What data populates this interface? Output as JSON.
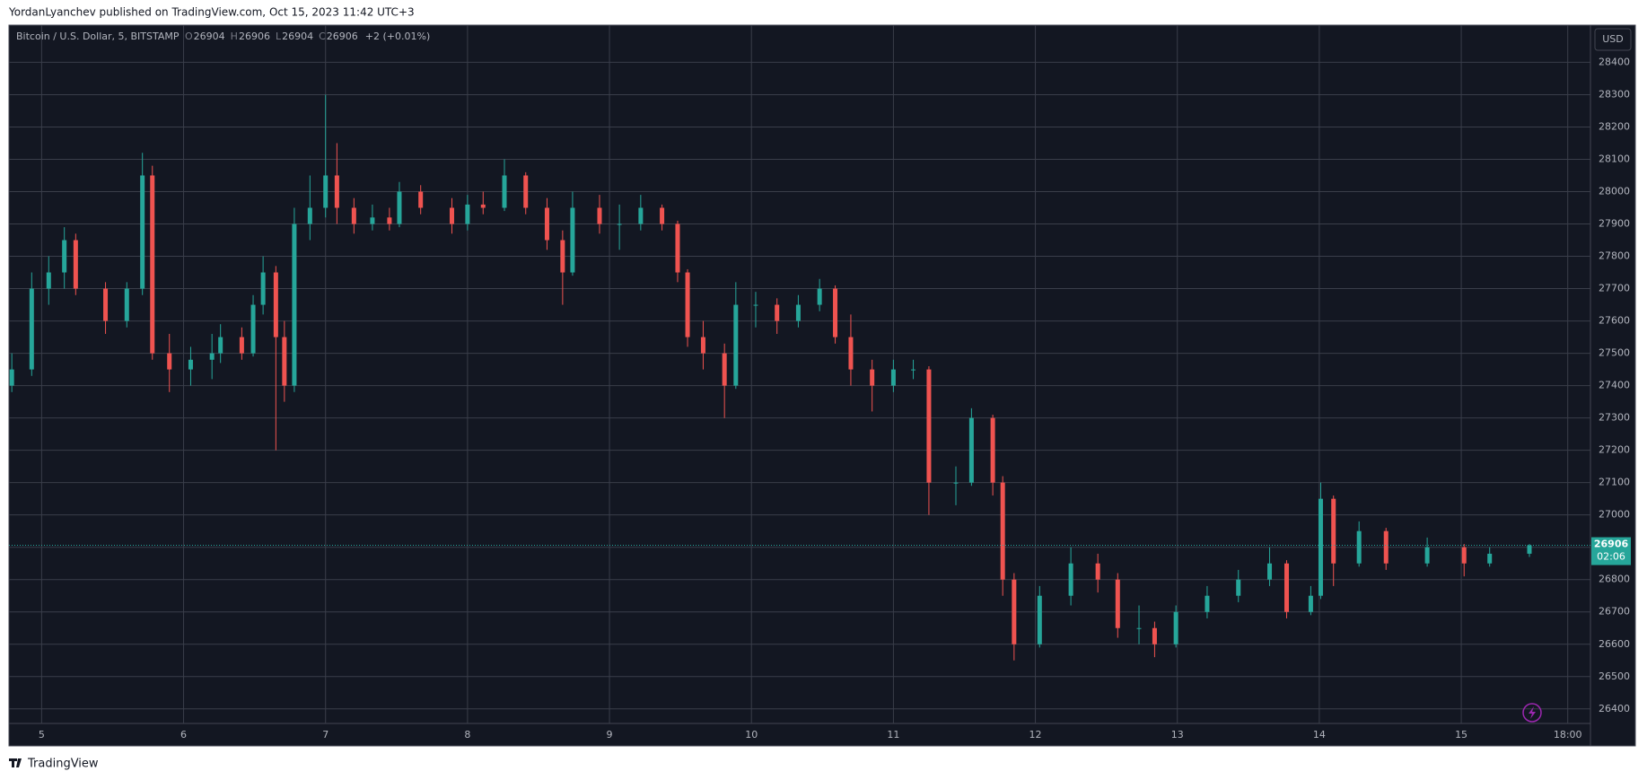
{
  "header": {
    "byline": "YordanLyanchev published on TradingView.com, Oct 15, 2023 11:42 UTC+3"
  },
  "footer": {
    "brand": "TradingView"
  },
  "chart_data": {
    "type": "candlestick",
    "symbol": "Bitcoin / U.S. Dollar, 5, BITSTAMP",
    "ohlc_legend": {
      "labels": [
        "O",
        "H",
        "L",
        "C"
      ],
      "values": [
        26904,
        26906,
        26904,
        26906
      ],
      "change": "+2 (+0.01%)"
    },
    "currency": "USD",
    "last_price": 26906,
    "countdown": "02:06",
    "up_color": "#26a69a",
    "down_color": "#ef5350",
    "grid": true,
    "xlim": [
      4.77,
      15.91
    ],
    "xticks": [
      5,
      6,
      7,
      8,
      9,
      10,
      11,
      12,
      13,
      14,
      15,
      {
        "value": 15.75,
        "label": "18:00"
      }
    ],
    "ylim": [
      26355,
      28515
    ],
    "yticks": [
      26400,
      26500,
      26600,
      26700,
      26800,
      26900,
      27000,
      27100,
      27200,
      27300,
      27400,
      27500,
      27600,
      27700,
      27800,
      27900,
      28000,
      28100,
      28200,
      28300,
      28400
    ],
    "x": [
      4.79,
      4.93,
      5.05,
      5.16,
      5.24,
      5.45,
      5.6,
      5.71,
      5.78,
      5.9,
      6.05,
      6.2,
      6.26,
      6.41,
      6.49,
      6.56,
      6.65,
      6.71,
      6.78,
      6.89,
      7.0,
      7.08,
      7.2,
      7.33,
      7.45,
      7.52,
      7.67,
      7.89,
      8.0,
      8.11,
      8.26,
      8.41,
      8.56,
      8.67,
      8.74,
      8.93,
      9.07,
      9.22,
      9.37,
      9.48,
      9.55,
      9.66,
      9.81,
      9.89,
      10.03,
      10.18,
      10.33,
      10.48,
      10.59,
      10.7,
      10.85,
      11.0,
      11.14,
      11.25,
      11.44,
      11.55,
      11.7,
      11.77,
      11.85,
      12.03,
      12.25,
      12.44,
      12.58,
      12.73,
      12.84,
      12.99,
      13.21,
      13.43,
      13.65,
      13.77,
      13.94,
      14.01,
      14.1,
      14.28,
      14.47,
      14.76,
      15.02,
      15.2,
      15.48
    ],
    "open": [
      27400,
      27450,
      27700,
      27750,
      27850,
      27700,
      27600,
      27700,
      28050,
      27500,
      27450,
      27480,
      27500,
      27550,
      27500,
      27650,
      27750,
      27550,
      27400,
      27900,
      27950,
      28050,
      27950,
      27900,
      27920,
      27900,
      28000,
      27950,
      27900,
      27960,
      27950,
      28050,
      27950,
      27850,
      27750,
      27950,
      27900,
      27900,
      27950,
      27900,
      27750,
      27550,
      27500,
      27400,
      27650,
      27650,
      27600,
      27650,
      27700,
      27550,
      27450,
      27400,
      27450,
      27450,
      27100,
      27100,
      27300,
      27100,
      26800,
      26600,
      26750,
      26850,
      26800,
      26650,
      26650,
      26600,
      26700,
      26750,
      26800,
      26850,
      26700,
      26750,
      27050,
      26850,
      26950,
      26850,
      26900,
      26850,
      26880
    ],
    "high": [
      27500,
      27750,
      27800,
      27890,
      27870,
      27720,
      27720,
      28120,
      28080,
      27560,
      27520,
      27560,
      27590,
      27580,
      27680,
      27800,
      27770,
      27600,
      27950,
      28050,
      28300,
      28150,
      27980,
      27960,
      27950,
      28030,
      28020,
      27980,
      27990,
      28000,
      28100,
      28060,
      27980,
      27880,
      28000,
      27990,
      27960,
      27990,
      27960,
      27910,
      27760,
      27600,
      27530,
      27720,
      27690,
      27670,
      27680,
      27730,
      27710,
      27620,
      27480,
      27480,
      27480,
      27460,
      27150,
      27330,
      27310,
      27120,
      26820,
      26780,
      26900,
      26880,
      26820,
      26720,
      26670,
      26720,
      26780,
      26830,
      26900,
      26860,
      26780,
      27100,
      27060,
      26980,
      26960,
      26930,
      26910,
      26900,
      26910
    ],
    "low": [
      27380,
      27430,
      27650,
      27700,
      27680,
      27560,
      27580,
      27680,
      27480,
      27380,
      27400,
      27420,
      27470,
      27480,
      27490,
      27620,
      27200,
      27350,
      27380,
      27850,
      27920,
      27900,
      27870,
      27880,
      27880,
      27890,
      27930,
      27870,
      27880,
      27930,
      27940,
      27930,
      27820,
      27650,
      27740,
      27870,
      27820,
      27880,
      27880,
      27720,
      27520,
      27450,
      27300,
      27390,
      27580,
      27560,
      27580,
      27630,
      27530,
      27400,
      27320,
      27380,
      27420,
      27000,
      27030,
      27090,
      27060,
      26750,
      26550,
      26590,
      26720,
      26760,
      26620,
      26600,
      26560,
      26590,
      26680,
      26730,
      26780,
      26680,
      26690,
      26740,
      26780,
      26840,
      26830,
      26840,
      26810,
      26840,
      26870
    ],
    "close": [
      27450,
      27700,
      27750,
      27850,
      27700,
      27600,
      27700,
      28050,
      27500,
      27450,
      27480,
      27500,
      27550,
      27500,
      27650,
      27750,
      27550,
      27400,
      27900,
      27950,
      28050,
      27950,
      27900,
      27920,
      27900,
      28000,
      27950,
      27900,
      27960,
      27950,
      28050,
      27950,
      27850,
      27750,
      27950,
      27900,
      27900,
      27950,
      27900,
      27750,
      27550,
      27500,
      27400,
      27650,
      27650,
      27600,
      27650,
      27700,
      27550,
      27450,
      27400,
      27450,
      27450,
      27100,
      27100,
      27300,
      27100,
      26800,
      26600,
      26750,
      26850,
      26800,
      26650,
      26650,
      26600,
      26700,
      26750,
      26800,
      26850,
      26700,
      26750,
      27050,
      26850,
      26950,
      26850,
      26900,
      26850,
      26880,
      26906
    ]
  }
}
